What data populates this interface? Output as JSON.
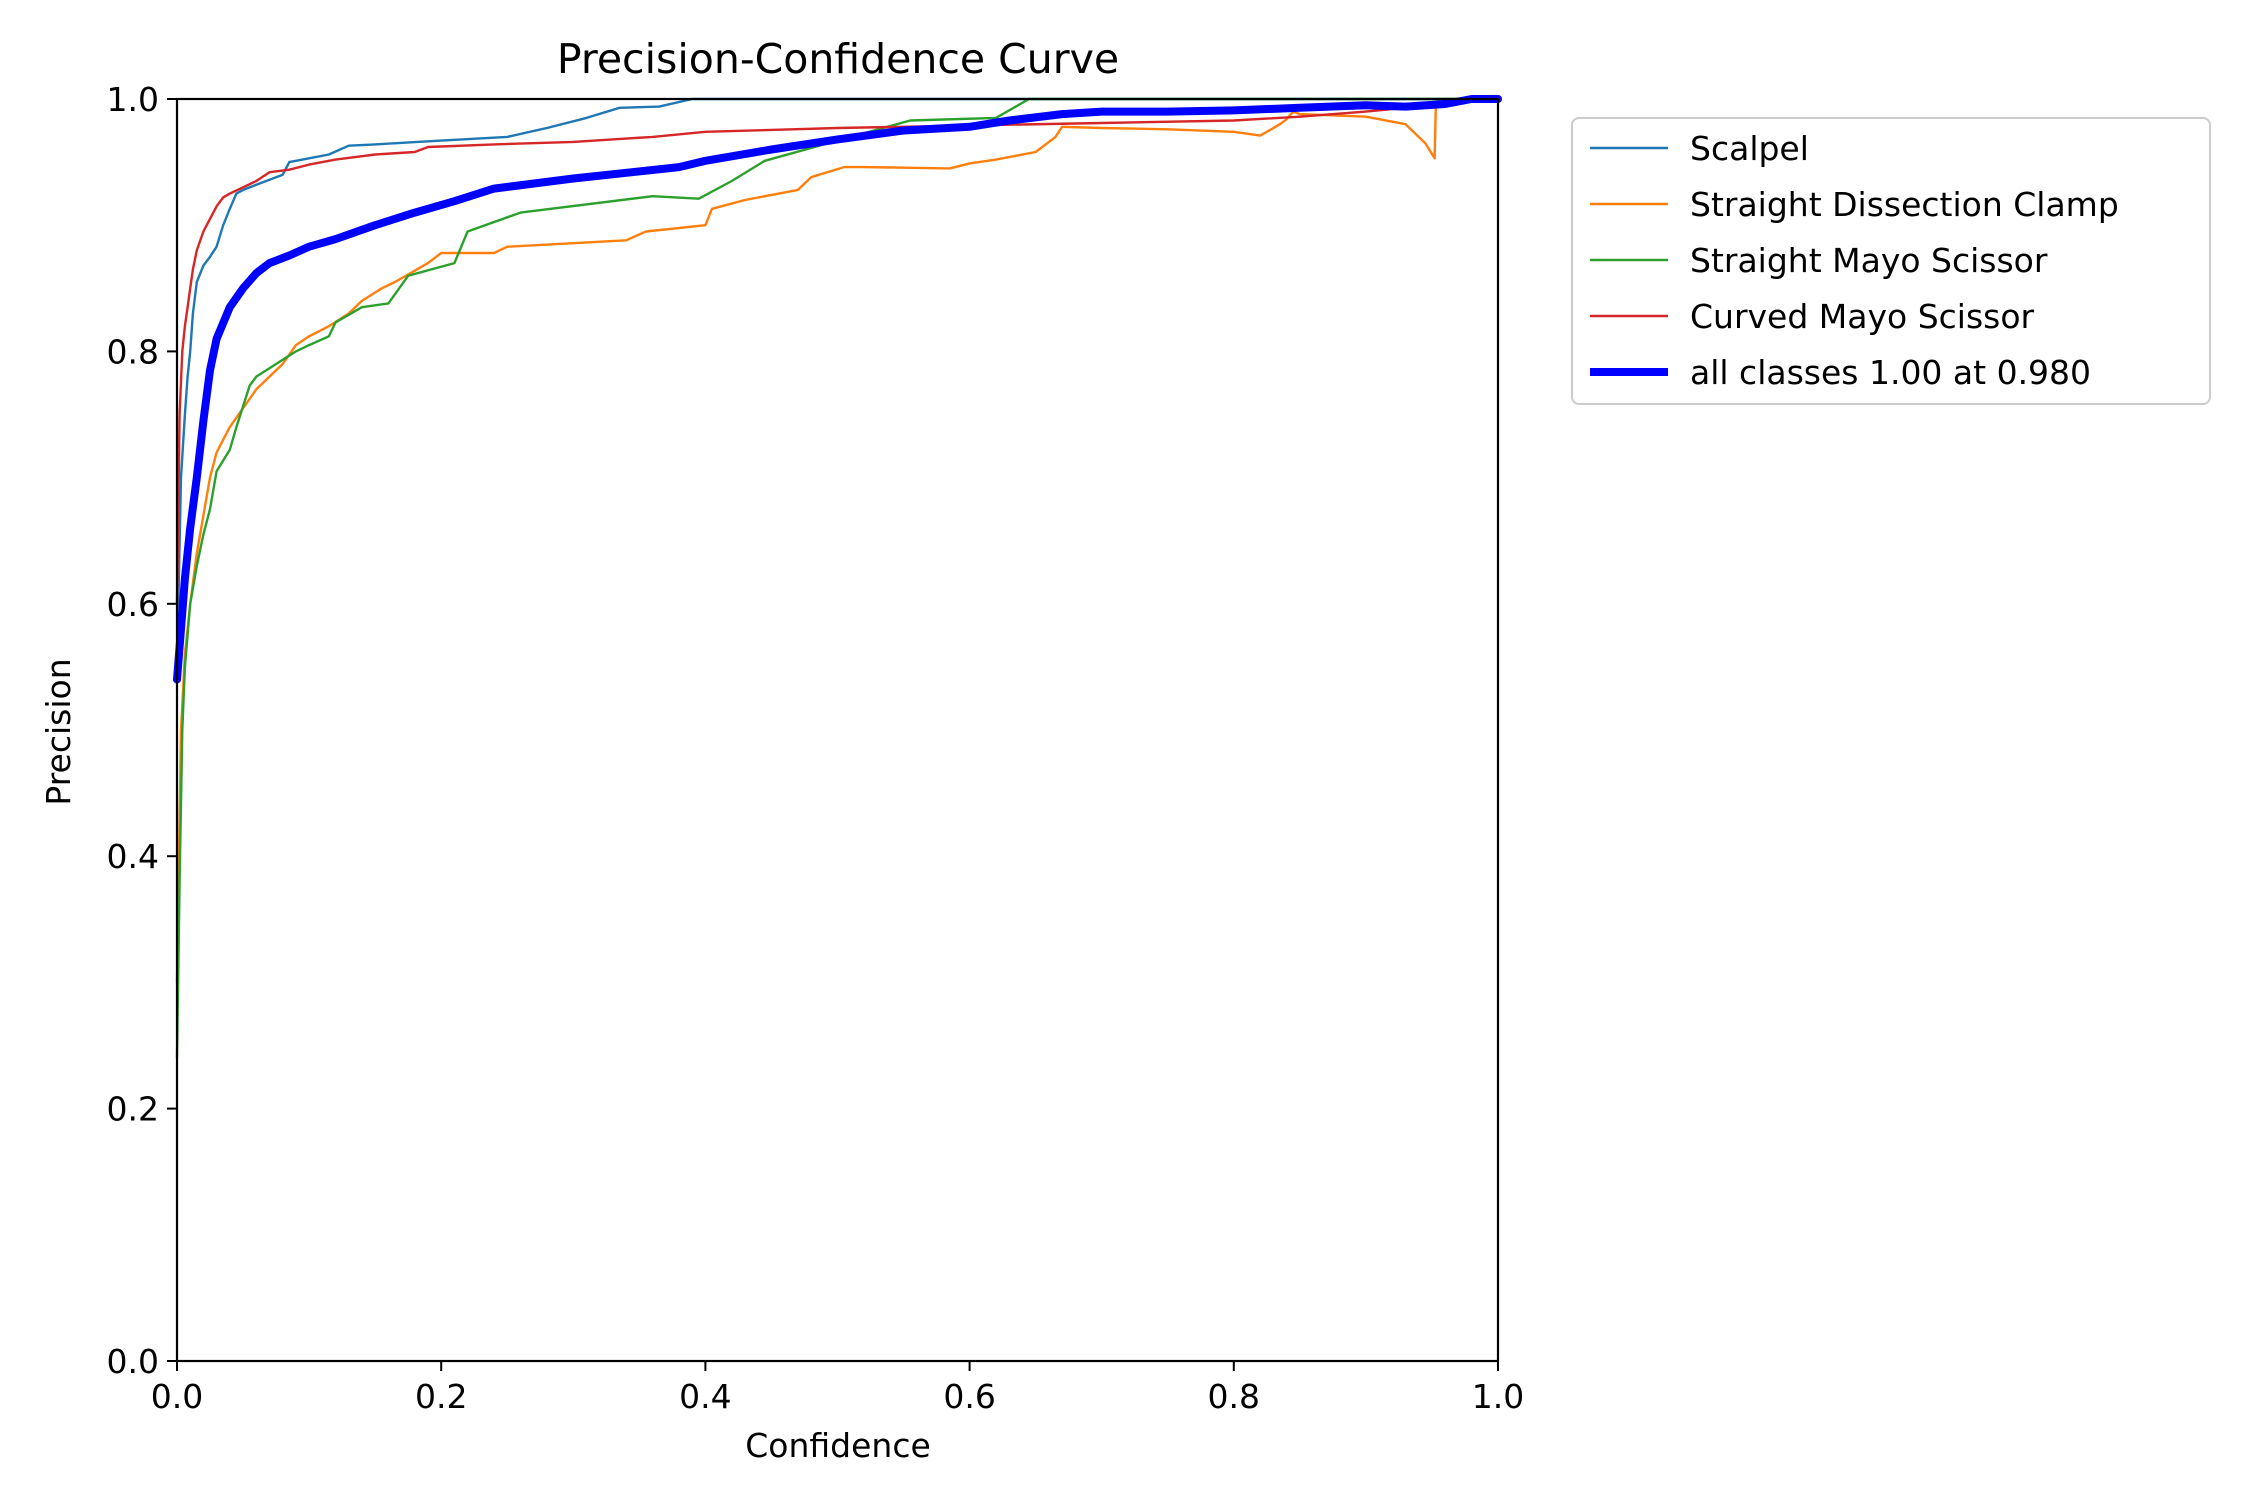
{
  "chart_data": {
    "type": "line",
    "title": "Precision-Confidence Curve",
    "xlabel": "Confidence",
    "ylabel": "Precision",
    "xlim": [
      0,
      1
    ],
    "ylim": [
      0,
      1
    ],
    "xticks": [
      "0.0",
      "0.2",
      "0.4",
      "0.6",
      "0.8",
      "1.0"
    ],
    "yticks": [
      "0.0",
      "0.2",
      "0.4",
      "0.6",
      "0.8",
      "1.0"
    ],
    "grid": false,
    "legend_position": "outside-top-right",
    "series": [
      {
        "name": "Scalpel",
        "color": "#1f77b4",
        "x": [
          0.0,
          0.003,
          0.006,
          0.008,
          0.01,
          0.012,
          0.015,
          0.02,
          0.025,
          0.03,
          0.035,
          0.04,
          0.045,
          0.05,
          0.06,
          0.07,
          0.08,
          0.085,
          0.1,
          0.115,
          0.13,
          0.15,
          0.2,
          0.25,
          0.28,
          0.31,
          0.335,
          0.365,
          0.39,
          0.45,
          0.5,
          0.6,
          0.7,
          0.8,
          0.9,
          1.0
        ],
        "y": [
          0.55,
          0.7,
          0.75,
          0.78,
          0.8,
          0.83,
          0.855,
          0.868,
          0.875,
          0.883,
          0.9,
          0.913,
          0.925,
          0.928,
          0.932,
          0.936,
          0.94,
          0.95,
          0.953,
          0.956,
          0.963,
          0.964,
          0.967,
          0.97,
          0.977,
          0.985,
          0.993,
          0.994,
          1.0,
          1.0,
          1.0,
          1.0,
          1.0,
          1.0,
          1.0,
          1.0
        ]
      },
      {
        "name": "Straight Dissection Clamp",
        "color": "#ff7f0e",
        "x": [
          0.0,
          0.003,
          0.006,
          0.01,
          0.015,
          0.02,
          0.025,
          0.03,
          0.04,
          0.05,
          0.06,
          0.07,
          0.08,
          0.09,
          0.1,
          0.115,
          0.13,
          0.14,
          0.155,
          0.165,
          0.19,
          0.2,
          0.24,
          0.25,
          0.34,
          0.355,
          0.4,
          0.405,
          0.43,
          0.47,
          0.48,
          0.505,
          0.52,
          0.585,
          0.6,
          0.62,
          0.65,
          0.665,
          0.67,
          0.7,
          0.75,
          0.8,
          0.82,
          0.835,
          0.84,
          0.845,
          0.85,
          0.9,
          0.93,
          0.945,
          0.952,
          0.953,
          0.96,
          1.0
        ],
        "y": [
          0.3,
          0.5,
          0.56,
          0.6,
          0.64,
          0.67,
          0.7,
          0.72,
          0.74,
          0.755,
          0.77,
          0.78,
          0.79,
          0.805,
          0.812,
          0.82,
          0.83,
          0.84,
          0.85,
          0.855,
          0.87,
          0.878,
          0.878,
          0.883,
          0.888,
          0.895,
          0.9,
          0.913,
          0.92,
          0.928,
          0.938,
          0.946,
          0.946,
          0.945,
          0.949,
          0.952,
          0.958,
          0.97,
          0.978,
          0.977,
          0.976,
          0.974,
          0.971,
          0.98,
          0.984,
          0.99,
          0.988,
          0.986,
          0.98,
          0.965,
          0.953,
          0.997,
          1.0,
          1.0
        ]
      },
      {
        "name": "Straight Mayo Scissor",
        "color": "#2ca02c",
        "x": [
          0.0,
          0.002,
          0.004,
          0.006,
          0.01,
          0.015,
          0.02,
          0.025,
          0.03,
          0.04,
          0.045,
          0.055,
          0.06,
          0.075,
          0.09,
          0.1,
          0.115,
          0.12,
          0.14,
          0.16,
          0.175,
          0.21,
          0.22,
          0.26,
          0.36,
          0.395,
          0.42,
          0.445,
          0.5,
          0.555,
          0.62,
          0.645,
          0.7,
          1.0
        ],
        "y": [
          0.24,
          0.38,
          0.5,
          0.55,
          0.6,
          0.63,
          0.655,
          0.675,
          0.705,
          0.722,
          0.74,
          0.773,
          0.78,
          0.79,
          0.8,
          0.805,
          0.812,
          0.823,
          0.835,
          0.838,
          0.86,
          0.87,
          0.895,
          0.91,
          0.923,
          0.921,
          0.935,
          0.951,
          0.967,
          0.983,
          0.985,
          1.0,
          1.0,
          1.0
        ]
      },
      {
        "name": "Curved Mayo Scissor",
        "color": "#d62728",
        "x": [
          0.0,
          0.002,
          0.004,
          0.006,
          0.008,
          0.01,
          0.012,
          0.015,
          0.02,
          0.025,
          0.03,
          0.035,
          0.04,
          0.05,
          0.06,
          0.07,
          0.085,
          0.1,
          0.12,
          0.135,
          0.15,
          0.18,
          0.19,
          0.24,
          0.3,
          0.36,
          0.4,
          0.5,
          0.6,
          0.7,
          0.8,
          0.85,
          0.9,
          0.95,
          1.0
        ],
        "y": [
          0.6,
          0.75,
          0.8,
          0.82,
          0.835,
          0.85,
          0.865,
          0.88,
          0.895,
          0.905,
          0.915,
          0.922,
          0.925,
          0.93,
          0.935,
          0.942,
          0.944,
          0.948,
          0.952,
          0.954,
          0.956,
          0.958,
          0.962,
          0.964,
          0.966,
          0.97,
          0.974,
          0.977,
          0.979,
          0.981,
          0.983,
          0.986,
          0.99,
          0.995,
          1.0
        ]
      },
      {
        "name": "all classes 1.00 at 0.980",
        "color": "#0000ff",
        "x": [
          0.0,
          0.003,
          0.006,
          0.01,
          0.015,
          0.02,
          0.025,
          0.03,
          0.04,
          0.05,
          0.06,
          0.07,
          0.085,
          0.1,
          0.12,
          0.15,
          0.18,
          0.21,
          0.24,
          0.3,
          0.38,
          0.4,
          0.45,
          0.5,
          0.55,
          0.6,
          0.63,
          0.67,
          0.7,
          0.75,
          0.8,
          0.85,
          0.9,
          0.93,
          0.96,
          0.98,
          1.0
        ],
        "y": [
          0.54,
          0.58,
          0.62,
          0.66,
          0.7,
          0.745,
          0.785,
          0.81,
          0.835,
          0.85,
          0.862,
          0.87,
          0.876,
          0.883,
          0.889,
          0.9,
          0.91,
          0.919,
          0.929,
          0.937,
          0.946,
          0.951,
          0.96,
          0.968,
          0.975,
          0.978,
          0.983,
          0.988,
          0.99,
          0.99,
          0.991,
          0.993,
          0.995,
          0.994,
          0.996,
          1.0,
          1.0
        ],
        "line_width": "thick"
      }
    ]
  }
}
